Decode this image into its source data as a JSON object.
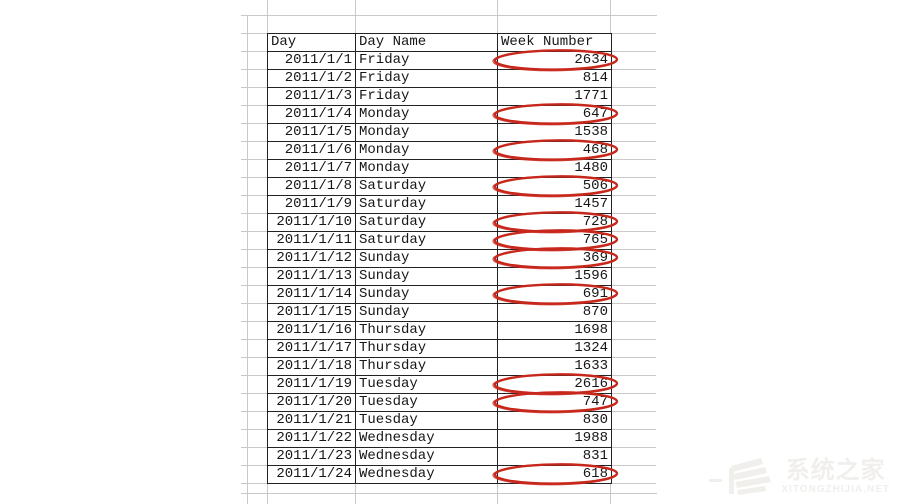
{
  "table": {
    "columns": [
      "Day",
      "Day Name",
      "Week Number"
    ],
    "rows": [
      {
        "date": "2011/1/1",
        "day_name": "Friday",
        "week_number": "2634",
        "circled": true
      },
      {
        "date": "2011/1/2",
        "day_name": "Friday",
        "week_number": "814",
        "circled": false
      },
      {
        "date": "2011/1/3",
        "day_name": "Friday",
        "week_number": "1771",
        "circled": false
      },
      {
        "date": "2011/1/4",
        "day_name": "Monday",
        "week_number": "647",
        "circled": true
      },
      {
        "date": "2011/1/5",
        "day_name": "Monday",
        "week_number": "1538",
        "circled": false
      },
      {
        "date": "2011/1/6",
        "day_name": "Monday",
        "week_number": "468",
        "circled": true
      },
      {
        "date": "2011/1/7",
        "day_name": "Monday",
        "week_number": "1480",
        "circled": false
      },
      {
        "date": "2011/1/8",
        "day_name": "Saturday",
        "week_number": "506",
        "circled": true
      },
      {
        "date": "2011/1/9",
        "day_name": "Saturday",
        "week_number": "1457",
        "circled": false
      },
      {
        "date": "2011/1/10",
        "day_name": "Saturday",
        "week_number": "728",
        "circled": true
      },
      {
        "date": "2011/1/11",
        "day_name": "Saturday",
        "week_number": "765",
        "circled": true
      },
      {
        "date": "2011/1/12",
        "day_name": "Sunday",
        "week_number": "369",
        "circled": true
      },
      {
        "date": "2011/1/13",
        "day_name": "Sunday",
        "week_number": "1596",
        "circled": false
      },
      {
        "date": "2011/1/14",
        "day_name": "Sunday",
        "week_number": "691",
        "circled": true
      },
      {
        "date": "2011/1/15",
        "day_name": "Sunday",
        "week_number": "870",
        "circled": false
      },
      {
        "date": "2011/1/16",
        "day_name": "Thursday",
        "week_number": "1698",
        "circled": false
      },
      {
        "date": "2011/1/17",
        "day_name": "Thursday",
        "week_number": "1324",
        "circled": false
      },
      {
        "date": "2011/1/18",
        "day_name": "Thursday",
        "week_number": "1633",
        "circled": false
      },
      {
        "date": "2011/1/19",
        "day_name": "Tuesday",
        "week_number": "2616",
        "circled": true
      },
      {
        "date": "2011/1/20",
        "day_name": "Tuesday",
        "week_number": "747",
        "circled": true
      },
      {
        "date": "2011/1/21",
        "day_name": "Tuesday",
        "week_number": "830",
        "circled": false
      },
      {
        "date": "2011/1/22",
        "day_name": "Wednesday",
        "week_number": "1988",
        "circled": false
      },
      {
        "date": "2011/1/23",
        "day_name": "Wednesday",
        "week_number": "831",
        "circled": false
      },
      {
        "date": "2011/1/24",
        "day_name": "Wednesday",
        "week_number": "618",
        "circled": true
      }
    ]
  },
  "watermark": {
    "brand": "系统之家",
    "site": "XITONGZHIJIA.NET"
  },
  "colors": {
    "circle_red": "#c8281c",
    "grid_line": "#c9c9c9",
    "table_border": "#222222",
    "text": "#161616",
    "watermark": "#f1efec"
  }
}
